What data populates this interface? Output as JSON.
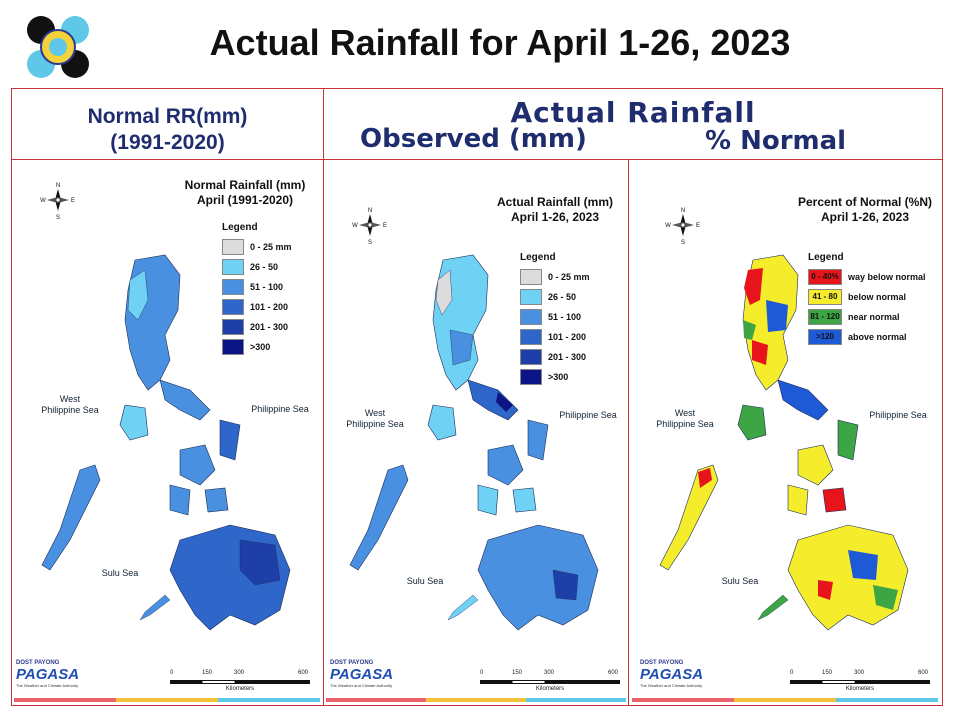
{
  "title": "Actual Rainfall for April 1-26, 2023",
  "header": {
    "left_line1": "Normal RR(mm)",
    "left_line2": "(1991-2020)",
    "right_title": "Actual Rainfall",
    "observed_label": "Observed (mm)",
    "percent_label": "% Normal"
  },
  "colors": {
    "frame": "#c8323a",
    "header_text": "#1f2d6e",
    "rain_0_25": "#dcdcdc",
    "rain_26_50": "#6fd2f5",
    "rain_51_100": "#4a90e0",
    "rain_101_200": "#2e66c9",
    "rain_201_300": "#1f3fa8",
    "rain_300_plus": "#0c1585",
    "pn_way_below": "#e8141c",
    "pn_below": "#f5ec2c",
    "pn_near": "#3da544",
    "pn_above": "#1f5ad6"
  },
  "maps": {
    "normal": {
      "title_line1": "Normal Rainfall (mm)",
      "title_line2": "April (1991-2020)",
      "legend_heading": "Legend",
      "legend": [
        {
          "label": "0 - 25 mm",
          "color": "#dcdcdc"
        },
        {
          "label": "26 - 50",
          "color": "#6fd2f5"
        },
        {
          "label": "51 - 100",
          "color": "#4a90e0"
        },
        {
          "label": "101 - 200",
          "color": "#2e66c9"
        },
        {
          "label": "201 - 300",
          "color": "#1f3fa8"
        },
        {
          "label": ">300",
          "color": "#0c1585"
        }
      ]
    },
    "actual": {
      "title_line1": "Actual Rainfall (mm)",
      "title_line2": "April 1-26, 2023",
      "legend_heading": "Legend",
      "legend": [
        {
          "label": "0 - 25 mm",
          "color": "#dcdcdc"
        },
        {
          "label": "26 - 50",
          "color": "#6fd2f5"
        },
        {
          "label": "51 - 100",
          "color": "#4a90e0"
        },
        {
          "label": "101 - 200",
          "color": "#2e66c9"
        },
        {
          "label": "201 - 300",
          "color": "#1f3fa8"
        },
        {
          "label": ">300",
          "color": "#0c1585"
        }
      ]
    },
    "percent": {
      "title_line1": "Percent of Normal (%N)",
      "title_line2": "April 1-26, 2023",
      "legend_heading": "Legend",
      "legend": [
        {
          "range": "0 - 40%",
          "label": "way below normal",
          "color": "#e8141c"
        },
        {
          "range": "41 - 80",
          "label": "below normal",
          "color": "#f5ec2c"
        },
        {
          "range": "81 - 120",
          "label": "near normal",
          "color": "#3da544"
        },
        {
          "range": ">120",
          "label": "above normal",
          "color": "#1f5ad6"
        }
      ]
    }
  },
  "sea_labels": {
    "west": "West Philippine Sea",
    "philippine": "Philippine Sea",
    "sulu": "Sulu Sea"
  },
  "compass": {
    "n": "N",
    "e": "E",
    "s": "S",
    "w": "W"
  },
  "scale": {
    "ticks": [
      "0",
      "150",
      "300",
      "600"
    ],
    "unit": "Kilometers"
  },
  "branding": {
    "name": "PAGASA",
    "tagline": "DOST PAYONG",
    "subtitle": "The Weather and Climate Authority"
  }
}
